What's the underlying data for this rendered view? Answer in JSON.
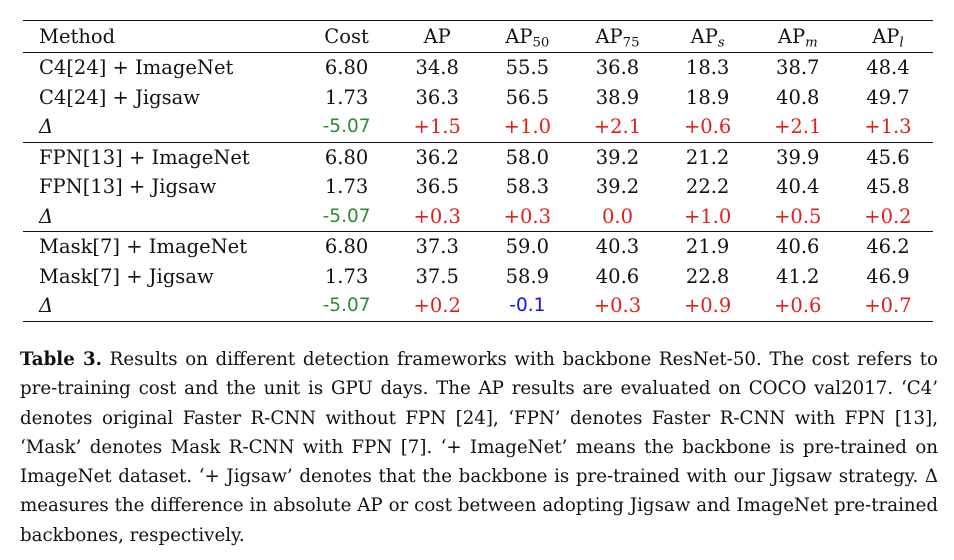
{
  "table": {
    "columns": [
      {
        "main": "Method",
        "sub": ""
      },
      {
        "main": "Cost",
        "sub": ""
      },
      {
        "main": "AP",
        "sub": ""
      },
      {
        "main": "AP",
        "sub": "50"
      },
      {
        "main": "AP",
        "sub": "75"
      },
      {
        "main": "AP",
        "sub": "s"
      },
      {
        "main": "AP",
        "sub": "m"
      },
      {
        "main": "AP",
        "sub": "l"
      }
    ],
    "groups": [
      {
        "rows": [
          {
            "method": "C4[24] + ImageNet",
            "values": [
              "6.80",
              "34.8",
              "55.5",
              "36.8",
              "18.3",
              "38.7",
              "48.4"
            ]
          },
          {
            "method": "C4[24] + Jigsaw",
            "values": [
              "1.73",
              "36.3",
              "56.5",
              "38.9",
              "18.9",
              "40.8",
              "49.7"
            ]
          },
          {
            "method": "Δ",
            "values": [
              "-5.07",
              "+1.5",
              "+1.0",
              "+2.1",
              "+0.6",
              "+2.1",
              "+1.3"
            ],
            "colors": [
              "green",
              "red",
              "red",
              "red",
              "red",
              "red",
              "red"
            ]
          }
        ]
      },
      {
        "rows": [
          {
            "method": "FPN[13] + ImageNet",
            "values": [
              "6.80",
              "36.2",
              "58.0",
              "39.2",
              "21.2",
              "39.9",
              "45.6"
            ]
          },
          {
            "method": "FPN[13] + Jigsaw",
            "values": [
              "1.73",
              "36.5",
              "58.3",
              "39.2",
              "22.2",
              "40.4",
              "45.8"
            ]
          },
          {
            "method": "Δ",
            "values": [
              "-5.07",
              "+0.3",
              "+0.3",
              "0.0",
              "+1.0",
              "+0.5",
              "+0.2"
            ],
            "colors": [
              "green",
              "red",
              "red",
              "red",
              "red",
              "red",
              "red"
            ]
          }
        ]
      },
      {
        "rows": [
          {
            "method": "Mask[7] + ImageNet",
            "values": [
              "6.80",
              "37.3",
              "59.0",
              "40.3",
              "21.9",
              "40.6",
              "46.2"
            ]
          },
          {
            "method": "Mask[7] + Jigsaw",
            "values": [
              "1.73",
              "37.5",
              "58.9",
              "40.6",
              "22.8",
              "41.2",
              "46.9"
            ]
          },
          {
            "method": "Δ",
            "values": [
              "-5.07",
              "+0.2",
              "-0.1",
              "+0.3",
              "+0.9",
              "+0.6",
              "+0.7"
            ],
            "colors": [
              "green",
              "red",
              "blue",
              "red",
              "red",
              "red",
              "red"
            ]
          }
        ]
      }
    ],
    "colors": {
      "green": "#2e8b37",
      "red": "#e0201d",
      "blue": "#1414e6"
    }
  },
  "caption": {
    "label": "Table 3.",
    "text": "Results on different detection frameworks with backbone ResNet-50. The cost refers to pre-training cost and the unit is GPU days. The AP results are evaluated on COCO val2017. ‘C4’ denotes original Faster R-CNN without FPN [24], ‘FPN’ denotes Faster R-CNN with FPN [13], ‘Mask’ denotes Mask R-CNN with FPN [7]. ‘+ ImageNet’ means the backbone is pre-trained on ImageNet dataset. ‘+ Jigsaw’ denotes that the backbone is pre-trained with our Jigsaw strategy. Δ measures the difference in absolute AP or cost between adopting Jigsaw and ImageNet pre-trained backbones, respectively."
  }
}
